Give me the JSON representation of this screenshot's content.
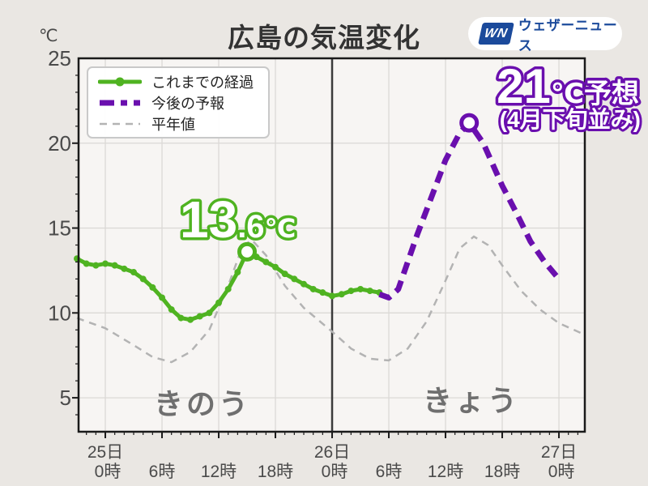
{
  "page": {
    "title": "広島の気温変化",
    "background": "#eae7e3",
    "plot_background": "#f7f5f3"
  },
  "header": {
    "unit_label": "℃"
  },
  "logo": {
    "mark": "WN",
    "name": "ウェザーニュース",
    "color": "#1b4a9b"
  },
  "legend": {
    "items": [
      {
        "label": "これまでの経過",
        "color": "#4fb321",
        "style": "solid"
      },
      {
        "label": "今後の予報",
        "color": "#6a0fae",
        "style": "dashed"
      },
      {
        "label": "平年値",
        "color": "#b3b3b3",
        "style": "dashed-thin"
      }
    ]
  },
  "annotations": {
    "observed_peak_value": "13",
    "observed_peak_decimal": ".6",
    "observed_peak_unit": "℃",
    "forecast_peak_value": "21",
    "forecast_peak_suffix": "℃予想",
    "forecast_peak_note": "(4月下旬並み)",
    "day_left": "きのう",
    "day_right": "きょう"
  },
  "chart_data": {
    "type": "line",
    "title": "広島の気温変化",
    "ylabel": "℃",
    "ylim": [
      3,
      25
    ],
    "yticks": [
      5,
      10,
      15,
      20,
      25
    ],
    "x_unit": "hours from 25日0時",
    "xlim": [
      -2.83,
      50.74
    ],
    "x_major_ticks": [
      0,
      6,
      12,
      18,
      24,
      30,
      36,
      42,
      48
    ],
    "xtick_labels": [
      {
        "t": 0,
        "day": "25日",
        "hour": "0時"
      },
      {
        "t": 6,
        "hour": "6時"
      },
      {
        "t": 12,
        "hour": "12時"
      },
      {
        "t": 18,
        "hour": "18時"
      },
      {
        "t": 24,
        "day": "26日",
        "hour": "0時"
      },
      {
        "t": 30,
        "hour": "6時"
      },
      {
        "t": 36,
        "hour": "12時"
      },
      {
        "t": 42,
        "hour": "18時"
      },
      {
        "t": 48,
        "day": "27日",
        "hour": "0時"
      }
    ],
    "divider_t": 24,
    "grid": true,
    "legend_position": "top-left",
    "series": [
      {
        "name": "これまでの経過",
        "color": "#4fb321",
        "style": "solid",
        "marker": true,
        "x": [
          -3,
          -2,
          -1,
          0,
          1,
          2,
          3,
          4,
          5,
          6,
          7,
          8,
          9,
          10,
          11,
          12,
          13,
          14,
          15,
          16,
          17,
          18,
          19,
          20,
          21,
          22,
          23,
          24,
          25,
          26,
          27,
          28,
          29
        ],
        "y": [
          13.2,
          12.9,
          12.8,
          12.9,
          12.8,
          12.6,
          12.4,
          12.0,
          11.5,
          10.9,
          10.2,
          9.7,
          9.6,
          9.8,
          10.0,
          10.6,
          11.4,
          12.4,
          13.6,
          13.3,
          13.0,
          12.7,
          12.3,
          12.0,
          11.7,
          11.4,
          11.2,
          11.0,
          11.1,
          11.3,
          11.4,
          11.3,
          11.2
        ]
      },
      {
        "name": "今後の予報",
        "color": "#6a0fae",
        "style": "dashed",
        "marker": false,
        "x": [
          29,
          30,
          31,
          33,
          36,
          37.5,
          38.5,
          40,
          42,
          43.5,
          45,
          46.5,
          48
        ],
        "y": [
          11.1,
          10.9,
          11.4,
          14.6,
          19.0,
          20.6,
          21.2,
          20.0,
          17.5,
          15.9,
          14.2,
          13.0,
          12.0
        ]
      },
      {
        "name": "平年値",
        "color": "#b3b3b3",
        "style": "dashed-thin",
        "marker": false,
        "x": [
          -3,
          0,
          3,
          5,
          7,
          9,
          11,
          13,
          14.5,
          15.5,
          17,
          19,
          21,
          24,
          26,
          28,
          30,
          32,
          34,
          36,
          37.5,
          39,
          40.5,
          42,
          44,
          46,
          48,
          50.8
        ],
        "y": [
          9.7,
          9.1,
          8.1,
          7.4,
          7.1,
          7.7,
          9.0,
          11.6,
          13.9,
          14.3,
          13.4,
          11.6,
          10.3,
          8.9,
          7.9,
          7.3,
          7.2,
          7.9,
          9.5,
          11.9,
          13.8,
          14.5,
          14.0,
          12.8,
          11.3,
          10.2,
          9.4,
          8.7
        ]
      }
    ],
    "highlights": [
      {
        "series": 0,
        "t": 15,
        "temp": 13.6,
        "label": "13.6℃"
      },
      {
        "series": 1,
        "t": 38.5,
        "temp": 21.2,
        "label": "21℃予想（4月下旬並み）"
      }
    ]
  }
}
